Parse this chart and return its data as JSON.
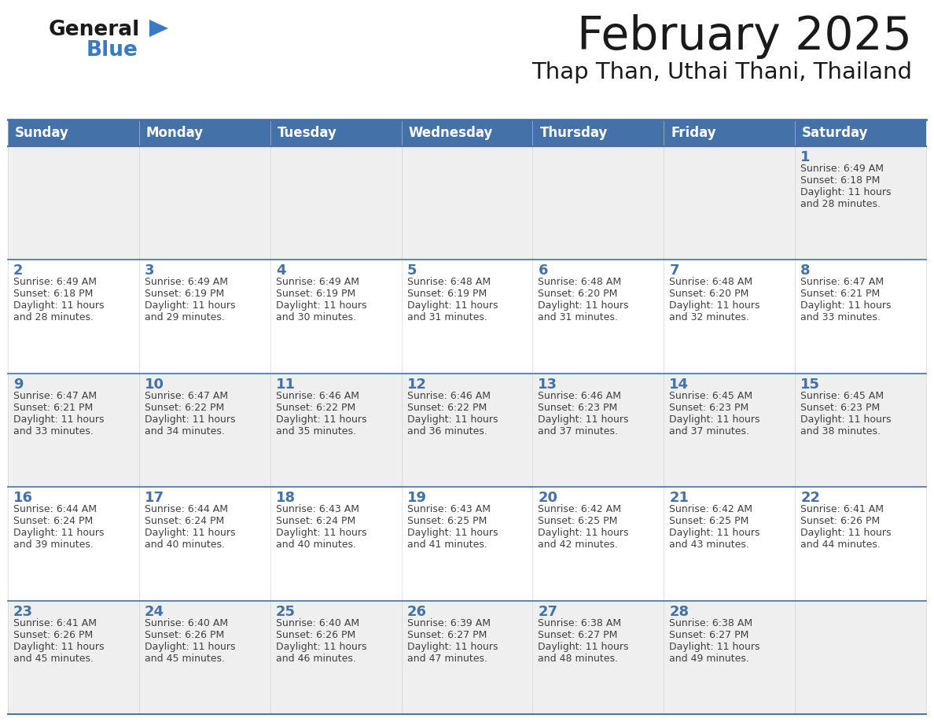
{
  "title": "February 2025",
  "subtitle": "Thap Than, Uthai Thani, Thailand",
  "days_of_week": [
    "Sunday",
    "Monday",
    "Tuesday",
    "Wednesday",
    "Thursday",
    "Friday",
    "Saturday"
  ],
  "header_bg": "#4472A8",
  "header_text": "#FFFFFF",
  "cell_bg_odd": "#EFEFEF",
  "cell_bg_even": "#FFFFFF",
  "border_color": "#4472A8",
  "title_color": "#1a1a1a",
  "subtitle_color": "#1a1a1a",
  "text_color": "#404040",
  "num_color": "#4472A8",
  "logo_general_color": "#1a1a1a",
  "logo_blue_color": "#3A7AC2",
  "calendar": [
    [
      null,
      null,
      null,
      null,
      null,
      null,
      1
    ],
    [
      2,
      3,
      4,
      5,
      6,
      7,
      8
    ],
    [
      9,
      10,
      11,
      12,
      13,
      14,
      15
    ],
    [
      16,
      17,
      18,
      19,
      20,
      21,
      22
    ],
    [
      23,
      24,
      25,
      26,
      27,
      28,
      null
    ]
  ],
  "cell_data": {
    "1": {
      "sunrise": "6:49 AM",
      "sunset": "6:18 PM",
      "daylight": "11 hours and 28 minutes."
    },
    "2": {
      "sunrise": "6:49 AM",
      "sunset": "6:18 PM",
      "daylight": "11 hours and 28 minutes."
    },
    "3": {
      "sunrise": "6:49 AM",
      "sunset": "6:19 PM",
      "daylight": "11 hours and 29 minutes."
    },
    "4": {
      "sunrise": "6:49 AM",
      "sunset": "6:19 PM",
      "daylight": "11 hours and 30 minutes."
    },
    "5": {
      "sunrise": "6:48 AM",
      "sunset": "6:19 PM",
      "daylight": "11 hours and 31 minutes."
    },
    "6": {
      "sunrise": "6:48 AM",
      "sunset": "6:20 PM",
      "daylight": "11 hours and 31 minutes."
    },
    "7": {
      "sunrise": "6:48 AM",
      "sunset": "6:20 PM",
      "daylight": "11 hours and 32 minutes."
    },
    "8": {
      "sunrise": "6:47 AM",
      "sunset": "6:21 PM",
      "daylight": "11 hours and 33 minutes."
    },
    "9": {
      "sunrise": "6:47 AM",
      "sunset": "6:21 PM",
      "daylight": "11 hours and 33 minutes."
    },
    "10": {
      "sunrise": "6:47 AM",
      "sunset": "6:22 PM",
      "daylight": "11 hours and 34 minutes."
    },
    "11": {
      "sunrise": "6:46 AM",
      "sunset": "6:22 PM",
      "daylight": "11 hours and 35 minutes."
    },
    "12": {
      "sunrise": "6:46 AM",
      "sunset": "6:22 PM",
      "daylight": "11 hours and 36 minutes."
    },
    "13": {
      "sunrise": "6:46 AM",
      "sunset": "6:23 PM",
      "daylight": "11 hours and 37 minutes."
    },
    "14": {
      "sunrise": "6:45 AM",
      "sunset": "6:23 PM",
      "daylight": "11 hours and 37 minutes."
    },
    "15": {
      "sunrise": "6:45 AM",
      "sunset": "6:23 PM",
      "daylight": "11 hours and 38 minutes."
    },
    "16": {
      "sunrise": "6:44 AM",
      "sunset": "6:24 PM",
      "daylight": "11 hours and 39 minutes."
    },
    "17": {
      "sunrise": "6:44 AM",
      "sunset": "6:24 PM",
      "daylight": "11 hours and 40 minutes."
    },
    "18": {
      "sunrise": "6:43 AM",
      "sunset": "6:24 PM",
      "daylight": "11 hours and 40 minutes."
    },
    "19": {
      "sunrise": "6:43 AM",
      "sunset": "6:25 PM",
      "daylight": "11 hours and 41 minutes."
    },
    "20": {
      "sunrise": "6:42 AM",
      "sunset": "6:25 PM",
      "daylight": "11 hours and 42 minutes."
    },
    "21": {
      "sunrise": "6:42 AM",
      "sunset": "6:25 PM",
      "daylight": "11 hours and 43 minutes."
    },
    "22": {
      "sunrise": "6:41 AM",
      "sunset": "6:26 PM",
      "daylight": "11 hours and 44 minutes."
    },
    "23": {
      "sunrise": "6:41 AM",
      "sunset": "6:26 PM",
      "daylight": "11 hours and 45 minutes."
    },
    "24": {
      "sunrise": "6:40 AM",
      "sunset": "6:26 PM",
      "daylight": "11 hours and 45 minutes."
    },
    "25": {
      "sunrise": "6:40 AM",
      "sunset": "6:26 PM",
      "daylight": "11 hours and 46 minutes."
    },
    "26": {
      "sunrise": "6:39 AM",
      "sunset": "6:27 PM",
      "daylight": "11 hours and 47 minutes."
    },
    "27": {
      "sunrise": "6:38 AM",
      "sunset": "6:27 PM",
      "daylight": "11 hours and 48 minutes."
    },
    "28": {
      "sunrise": "6:38 AM",
      "sunset": "6:27 PM",
      "daylight": "11 hours and 49 minutes."
    }
  },
  "fig_width": 11.88,
  "fig_height": 9.18,
  "dpi": 100
}
